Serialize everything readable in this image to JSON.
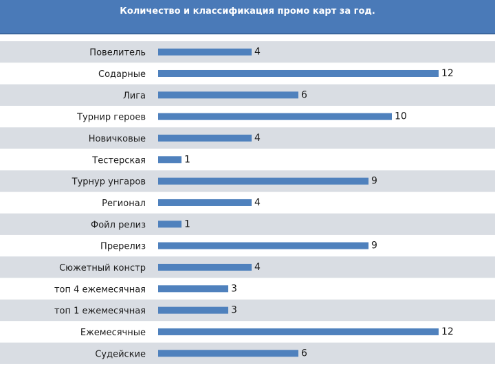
{
  "colors": {
    "header": "#4a7ab8",
    "bar": "#4f81bd",
    "band_dark": "#d9dde3",
    "band_light": "#ffffff",
    "text": "#1a1a1a"
  },
  "chart_data": {
    "type": "bar",
    "orientation": "horizontal",
    "title": "Количество и классификация промо карт за год.",
    "categories": [
      "Повелитель",
      "Содарные",
      "Лига",
      "Турнир героев",
      "Новичковые",
      "Тестерская",
      "Турнур унгаров",
      "Регионал",
      "Фойл релиз",
      "Пререлиз",
      "Сюжетный констр",
      "топ 4 ежемесячная",
      "топ 1 ежемесячная",
      "Ежемесячные",
      "Судейские"
    ],
    "values": [
      4,
      12,
      6,
      10,
      4,
      1,
      9,
      4,
      1,
      9,
      4,
      3,
      3,
      12,
      6
    ],
    "xlim": [
      0,
      12
    ],
    "grid": false,
    "legend": "none",
    "data_labels": true
  }
}
